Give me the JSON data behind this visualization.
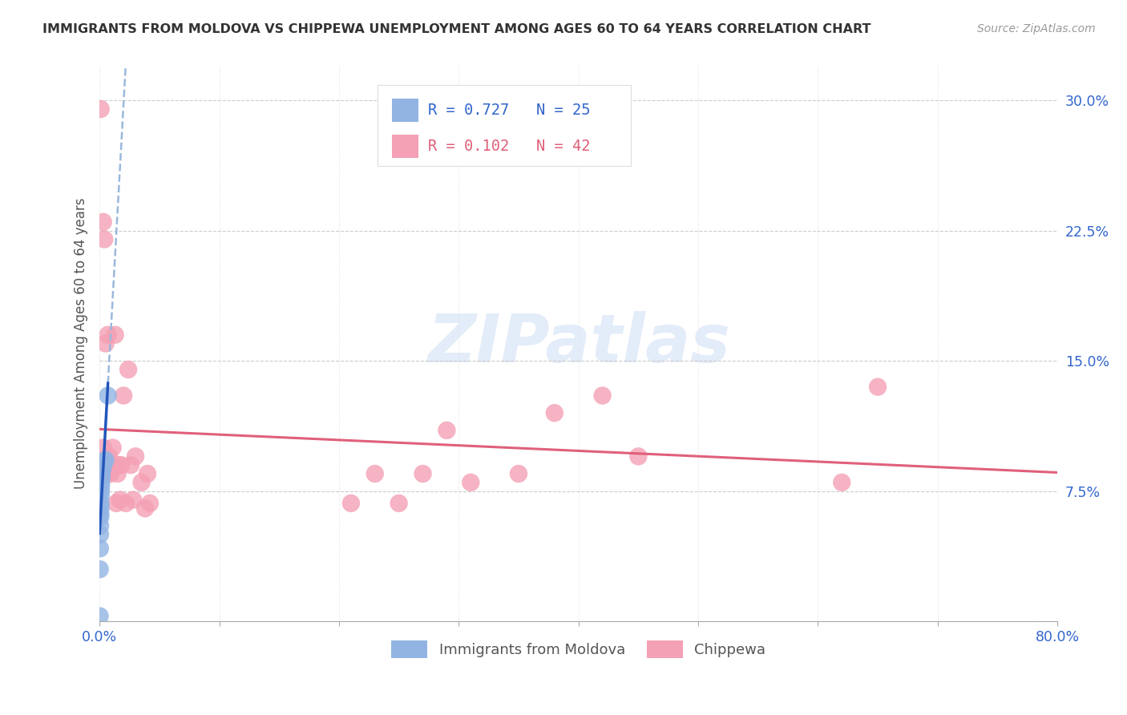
{
  "title": "IMMIGRANTS FROM MOLDOVA VS CHIPPEWA UNEMPLOYMENT AMONG AGES 60 TO 64 YEARS CORRELATION CHART",
  "source": "Source: ZipAtlas.com",
  "ylabel": "Unemployment Among Ages 60 to 64 years",
  "xlim": [
    0.0,
    0.8
  ],
  "ylim": [
    0.0,
    0.32
  ],
  "yticks": [
    0.0,
    0.075,
    0.15,
    0.225,
    0.3
  ],
  "ytick_labels": [
    "",
    "7.5%",
    "15.0%",
    "22.5%",
    "30.0%"
  ],
  "xticks": [
    0.0,
    0.1,
    0.2,
    0.3,
    0.4,
    0.5,
    0.6,
    0.7,
    0.8
  ],
  "xtick_labels": [
    "0.0%",
    "",
    "",
    "",
    "",
    "",
    "",
    "",
    "80.0%"
  ],
  "label1": "Immigrants from Moldova",
  "label2": "Chippewa",
  "color1": "#92b4e3",
  "color2": "#f4a0b5",
  "trendline1_solid_color": "#2255bb",
  "trendline1_dash_color": "#9ab8dd",
  "trendline2_color": "#e0607a",
  "legend_color1": "#3366cc",
  "legend_color2": "#e0607a",
  "watermark_color": "#cdddf5",
  "background_color": "#ffffff",
  "moldova_x": [
    0.0002,
    0.0003,
    0.0004,
    0.0005,
    0.0006,
    0.0007,
    0.0008,
    0.0009,
    0.001,
    0.001,
    0.0012,
    0.0013,
    0.0014,
    0.0015,
    0.0016,
    0.0017,
    0.0018,
    0.002,
    0.0022,
    0.0025,
    0.003,
    0.0035,
    0.004,
    0.005,
    0.007
  ],
  "moldova_y": [
    0.003,
    0.03,
    0.042,
    0.05,
    0.055,
    0.06,
    0.062,
    0.065,
    0.068,
    0.072,
    0.075,
    0.078,
    0.08,
    0.082,
    0.083,
    0.085,
    0.086,
    0.087,
    0.088,
    0.088,
    0.09,
    0.091,
    0.092,
    0.093,
    0.13
  ],
  "chippewa_x": [
    0.001,
    0.002,
    0.003,
    0.003,
    0.004,
    0.004,
    0.005,
    0.006,
    0.007,
    0.008,
    0.009,
    0.01,
    0.011,
    0.012,
    0.013,
    0.014,
    0.015,
    0.016,
    0.017,
    0.018,
    0.02,
    0.022,
    0.024,
    0.026,
    0.028,
    0.03,
    0.035,
    0.038,
    0.04,
    0.042,
    0.21,
    0.23,
    0.25,
    0.27,
    0.29,
    0.31,
    0.35,
    0.38,
    0.42,
    0.45,
    0.62,
    0.65
  ],
  "chippewa_y": [
    0.295,
    0.09,
    0.23,
    0.1,
    0.22,
    0.085,
    0.16,
    0.085,
    0.165,
    0.095,
    0.085,
    0.09,
    0.1,
    0.09,
    0.165,
    0.068,
    0.085,
    0.09,
    0.07,
    0.09,
    0.13,
    0.068,
    0.145,
    0.09,
    0.07,
    0.095,
    0.08,
    0.065,
    0.085,
    0.068,
    0.068,
    0.085,
    0.068,
    0.085,
    0.11,
    0.08,
    0.085,
    0.12,
    0.13,
    0.095,
    0.08,
    0.135
  ]
}
